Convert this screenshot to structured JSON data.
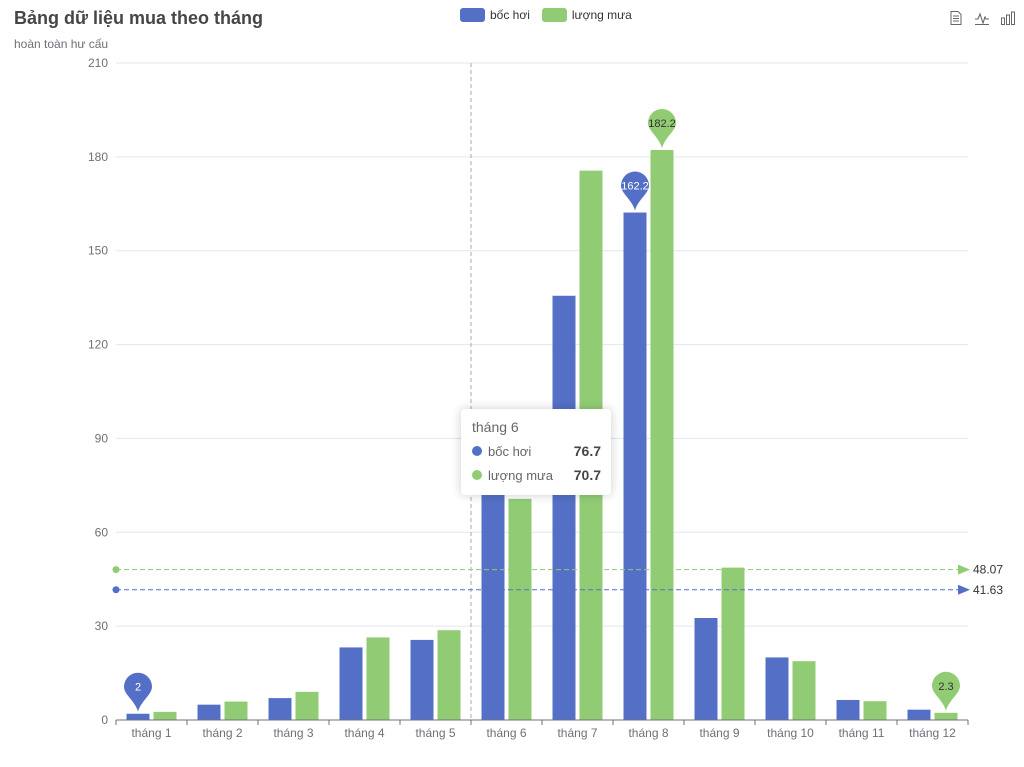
{
  "title": "Bảng dữ liệu mua theo tháng",
  "subtitle": "hoàn toàn hư cấu",
  "colors": {
    "evap": "#5470c6",
    "rain": "#91cc75"
  },
  "legend": [
    {
      "label": "bốc hơi",
      "color": "#5470c6"
    },
    {
      "label": "lượng mưa",
      "color": "#91cc75"
    }
  ],
  "toolbox": [
    "data-view-icon",
    "line-chart-icon",
    "bar-chart-icon"
  ],
  "chart_data": {
    "type": "bar",
    "title": "Bảng dữ liệu mua theo tháng",
    "subtitle": "hoàn toàn hư cấu",
    "categories": [
      "tháng 1",
      "tháng 2",
      "tháng 3",
      "tháng 4",
      "tháng 5",
      "tháng 6",
      "tháng 7",
      "tháng 8",
      "tháng 9",
      "tháng 10",
      "tháng 11",
      "tháng 12"
    ],
    "series": [
      {
        "name": "bốc hơi",
        "values": [
          2.0,
          4.9,
          7.0,
          23.2,
          25.6,
          76.7,
          135.6,
          162.2,
          32.6,
          20.0,
          6.4,
          3.3
        ]
      },
      {
        "name": "lượng mưa",
        "values": [
          2.6,
          5.9,
          9.0,
          26.4,
          28.7,
          70.7,
          175.6,
          182.2,
          48.7,
          18.8,
          6.0,
          2.3
        ]
      }
    ],
    "ylim": [
      0,
      210
    ],
    "yticks": [
      0,
      30,
      60,
      90,
      120,
      150,
      180,
      210
    ],
    "grid": true,
    "legend_position": "top-center",
    "mark_points": [
      {
        "series": 0,
        "index": 0,
        "label": "2"
      },
      {
        "series": 0,
        "index": 7,
        "label": "162.2"
      },
      {
        "series": 1,
        "index": 7,
        "label": "182.2"
      },
      {
        "series": 1,
        "index": 11,
        "label": "2.3"
      }
    ],
    "mark_lines": [
      {
        "series": 0,
        "value": 41.63,
        "label": "41.63"
      },
      {
        "series": 1,
        "value": 48.07,
        "label": "48.07"
      }
    ],
    "highlighted_category": "tháng 6"
  },
  "tooltip": {
    "title": "tháng 6",
    "rows": [
      {
        "name": "bốc hơi",
        "value": "76.7",
        "color": "#5470c6"
      },
      {
        "name": "lượng mưa",
        "value": "70.7",
        "color": "#91cc75"
      }
    ]
  }
}
